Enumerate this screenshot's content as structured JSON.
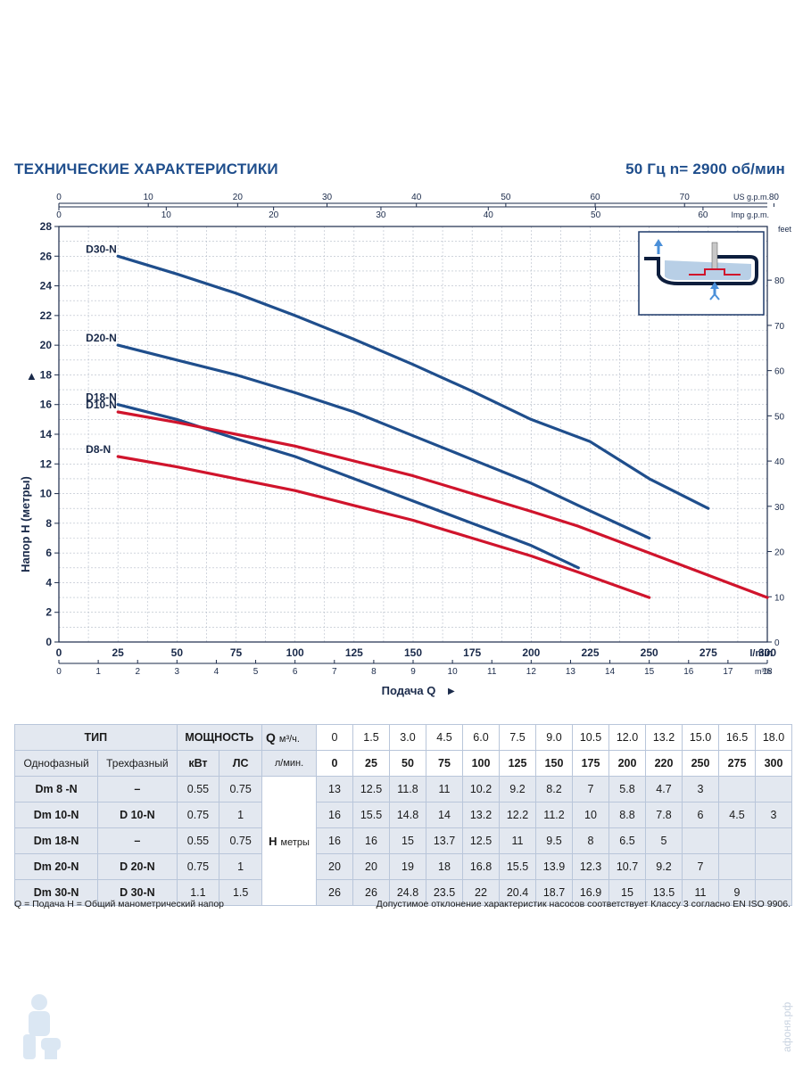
{
  "header": {
    "title": "ТЕХНИЧЕСКИЕ ХАРАКТЕРИСТИКИ",
    "speed": "50 Гц   n= 2900 об/мин"
  },
  "chart_data": {
    "type": "line",
    "ylabel": "Напор H (метры)",
    "xlabel": "Подача Q",
    "ylim": [
      0,
      28
    ],
    "xlim_lmin": [
      0,
      300
    ],
    "y_ticks": [
      0,
      2,
      4,
      6,
      8,
      10,
      12,
      14,
      16,
      18,
      20,
      22,
      24,
      26,
      28
    ],
    "x_ticks_lmin": [
      0,
      25,
      50,
      75,
      100,
      125,
      150,
      175,
      200,
      225,
      250,
      275,
      300
    ],
    "x_unit_lmin": "l/min",
    "x_ticks_m3h": [
      0,
      1,
      2,
      3,
      4,
      5,
      6,
      7,
      8,
      9,
      10,
      11,
      12,
      13,
      14,
      15,
      16,
      17,
      18
    ],
    "x_unit_m3h": "m³/h",
    "x_ticks_usgpm": [
      0,
      10,
      20,
      30,
      40,
      50,
      60,
      70,
      80
    ],
    "x_unit_usgpm": "US g.p.m.",
    "x_ticks_impgpm": [
      0,
      10,
      20,
      30,
      40,
      50,
      60
    ],
    "x_unit_impgpm": "Imp g.p.m.",
    "y2_ticks_feet": [
      0,
      10,
      20,
      30,
      40,
      50,
      60,
      70,
      80
    ],
    "y2_unit": "feet",
    "grid": true,
    "series": [
      {
        "name": "D30-N",
        "color": "#1f4e8c",
        "x": [
          25,
          50,
          75,
          100,
          125,
          150,
          175,
          200,
          225,
          250,
          275
        ],
        "y": [
          26,
          24.8,
          23.5,
          22,
          20.4,
          18.7,
          16.9,
          15,
          13.5,
          11,
          9
        ]
      },
      {
        "name": "D20-N",
        "color": "#1f4e8c",
        "x": [
          25,
          50,
          75,
          100,
          125,
          150,
          175,
          200,
          220,
          250
        ],
        "y": [
          20,
          19,
          18,
          16.8,
          15.5,
          13.9,
          12.3,
          10.7,
          9.2,
          7
        ]
      },
      {
        "name": "D18-N",
        "color": "#1f4e8c",
        "x": [
          25,
          50,
          75,
          100,
          125,
          150,
          175,
          200,
          220
        ],
        "y": [
          16,
          15,
          13.7,
          12.5,
          11,
          9.5,
          8,
          6.5,
          5
        ]
      },
      {
        "name": "D10-N",
        "color": "#d0142c",
        "x": [
          25,
          50,
          75,
          100,
          125,
          150,
          175,
          200,
          220,
          250,
          275,
          300
        ],
        "y": [
          15.5,
          14.8,
          14,
          13.2,
          12.2,
          11.2,
          10,
          8.8,
          7.8,
          6,
          4.5,
          3
        ]
      },
      {
        "name": "D8-N",
        "color": "#d0142c",
        "x": [
          25,
          50,
          75,
          100,
          125,
          150,
          175,
          200,
          220,
          250
        ],
        "y": [
          12.5,
          11.8,
          11,
          10.2,
          9.2,
          8.2,
          7,
          5.8,
          4.7,
          3
        ]
      }
    ]
  },
  "table": {
    "type_header": "ТИП",
    "power_header": "МОЩНОСТЬ",
    "single_phase": "Однофазный",
    "three_phase": "Трехфазный",
    "kw": "кВт",
    "hp": "ЛС",
    "q_label": "Q",
    "q_unit_m3": "м³/ч.",
    "q_unit_lmin": "л/мин.",
    "h_label": "H",
    "h_unit": "метры",
    "q_m3h": [
      "0",
      "1.5",
      "3.0",
      "4.5",
      "6.0",
      "7.5",
      "9.0",
      "10.5",
      "12.0",
      "13.2",
      "15.0",
      "16.5",
      "18.0"
    ],
    "q_lmin": [
      "0",
      "25",
      "50",
      "75",
      "100",
      "125",
      "150",
      "175",
      "200",
      "220",
      "250",
      "275",
      "300"
    ],
    "rows": [
      {
        "single": "Dm 8  -N",
        "three": "–",
        "kw": "0.55",
        "hp": "0.75",
        "h": [
          "13",
          "12.5",
          "11.8",
          "11",
          "10.2",
          "9.2",
          "8.2",
          "7",
          "5.8",
          "4.7",
          "3",
          "",
          ""
        ]
      },
      {
        "single": "Dm 10-N",
        "three": "D 10-N",
        "kw": "0.75",
        "hp": "1",
        "h": [
          "16",
          "15.5",
          "14.8",
          "14",
          "13.2",
          "12.2",
          "11.2",
          "10",
          "8.8",
          "7.8",
          "6",
          "4.5",
          "3"
        ]
      },
      {
        "single": "Dm 18-N",
        "three": "–",
        "kw": "0.55",
        "hp": "0.75",
        "h": [
          "16",
          "16",
          "15",
          "13.7",
          "12.5",
          "11",
          "9.5",
          "8",
          "6.5",
          "5",
          "",
          "",
          ""
        ]
      },
      {
        "single": "Dm 20-N",
        "three": "D 20-N",
        "kw": "0.75",
        "hp": "1",
        "h": [
          "20",
          "20",
          "19",
          "18",
          "16.8",
          "15.5",
          "13.9",
          "12.3",
          "10.7",
          "9.2",
          "7",
          "",
          ""
        ]
      },
      {
        "single": "Dm 30-N",
        "three": "D 30-N",
        "kw": "1.1",
        "hp": "1.5",
        "h": [
          "26",
          "26",
          "24.8",
          "23.5",
          "22",
          "20.4",
          "18.7",
          "16.9",
          "15",
          "13.5",
          "11",
          "9",
          ""
        ]
      }
    ]
  },
  "footer": {
    "left": "Q = Подача   H = Общий манометрический напор",
    "right": "Допустимое отклонение характеристик насосов соответствует Классу 3 согласно EN ISO 9906."
  },
  "watermark": {
    "text": "афоня.рф"
  }
}
